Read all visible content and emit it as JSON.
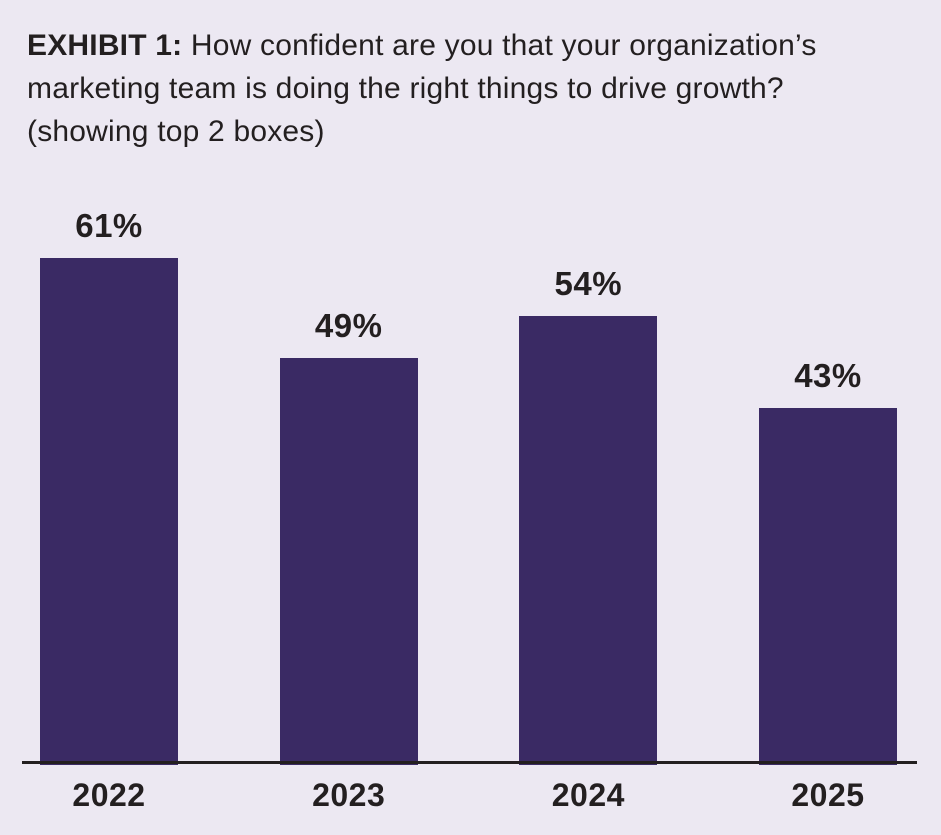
{
  "title": {
    "prefix": "EXHIBIT 1:",
    "text": " How confident are you that your organization’s marketing team is doing the right things to drive growth? (showing top 2 boxes)"
  },
  "chart_data": {
    "type": "bar",
    "title": "EXHIBIT 1: How confident are you that your organization’s marketing team is doing the right things to drive growth? (showing top 2 boxes)",
    "categories": [
      "2022",
      "2023",
      "2024",
      "2025"
    ],
    "values": [
      61,
      49,
      54,
      43
    ],
    "value_labels": [
      "61%",
      "49%",
      "54%",
      "43%"
    ],
    "xlabel": "",
    "ylabel": "",
    "ylim": [
      0,
      70
    ],
    "grid": false,
    "legend": false,
    "unit": "%"
  },
  "colors": {
    "background": "#ece8f2",
    "bar": "#3a2a64",
    "text": "#231f20",
    "axis": "#231f20"
  }
}
